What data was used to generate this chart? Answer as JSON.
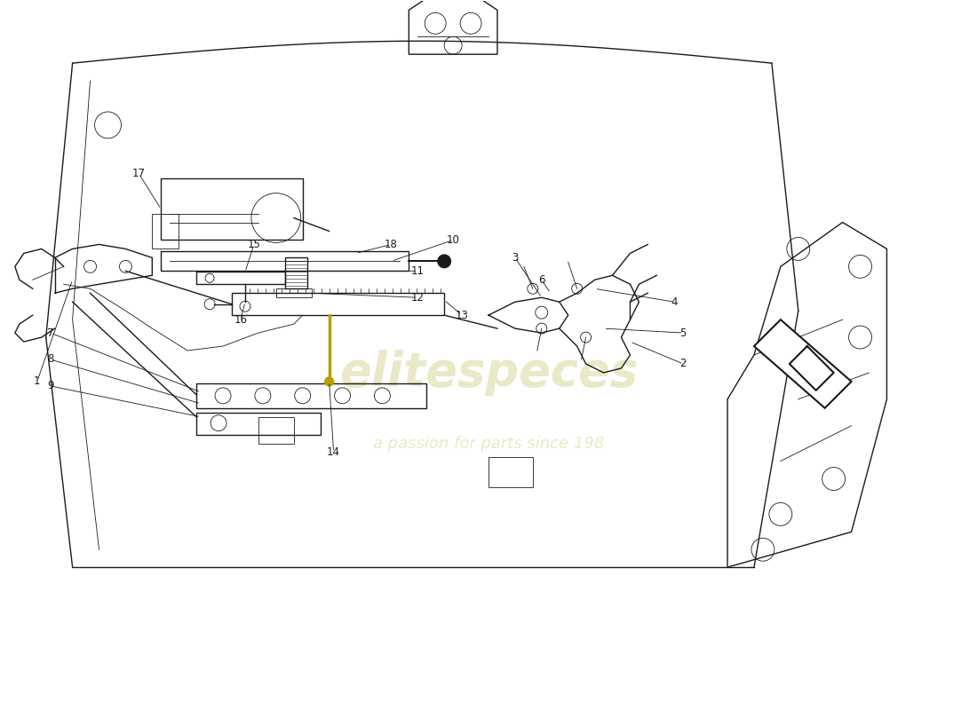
{
  "bg_color": "#ffffff",
  "line_color": "#1a1a1a",
  "lw": 1.0,
  "lw_thin": 0.6,
  "watermark1": "elitespeces",
  "watermark2": "a passion for parts since 198",
  "wm_color": "#e0e0b0",
  "yellow": "#b8a000",
  "fig_w": 11.0,
  "fig_h": 8.0
}
